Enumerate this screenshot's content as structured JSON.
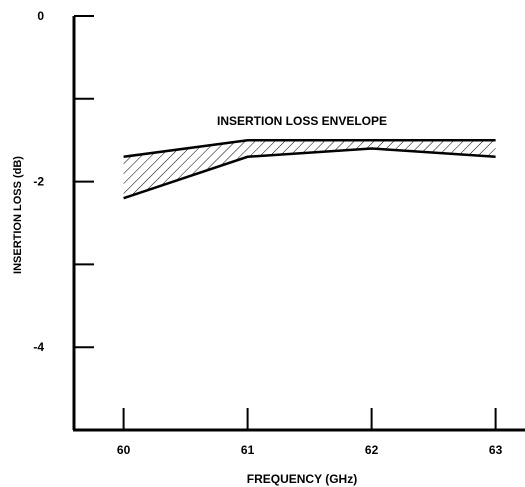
{
  "chart_data": {
    "type": "area",
    "title": "",
    "xlabel": "FREQUENCY (GHz)",
    "ylabel": "INSERTION LOSS (dB)",
    "xlim": [
      59.6,
      63.1
    ],
    "ylim": [
      -5,
      0
    ],
    "x_ticks": [
      60,
      61,
      62,
      63
    ],
    "x_tick_labels": [
      "60",
      "61",
      "62",
      "63"
    ],
    "y_ticks": [
      0,
      -1,
      -2,
      -3,
      -4
    ],
    "y_tick_labels": [
      "0",
      "",
      "-2",
      "",
      "-4"
    ],
    "grid": false,
    "legend": "none",
    "annotation": "INSERTION LOSS ENVELOPE",
    "series": [
      {
        "x": [
          60,
          61,
          62,
          63
        ],
        "values": [
          -1.7,
          -1.5,
          -1.5,
          -1.5
        ]
      },
      {
        "x": [
          60,
          61,
          62,
          63
        ],
        "values": [
          -2.2,
          -1.7,
          -1.6,
          -1.7
        ]
      }
    ]
  }
}
